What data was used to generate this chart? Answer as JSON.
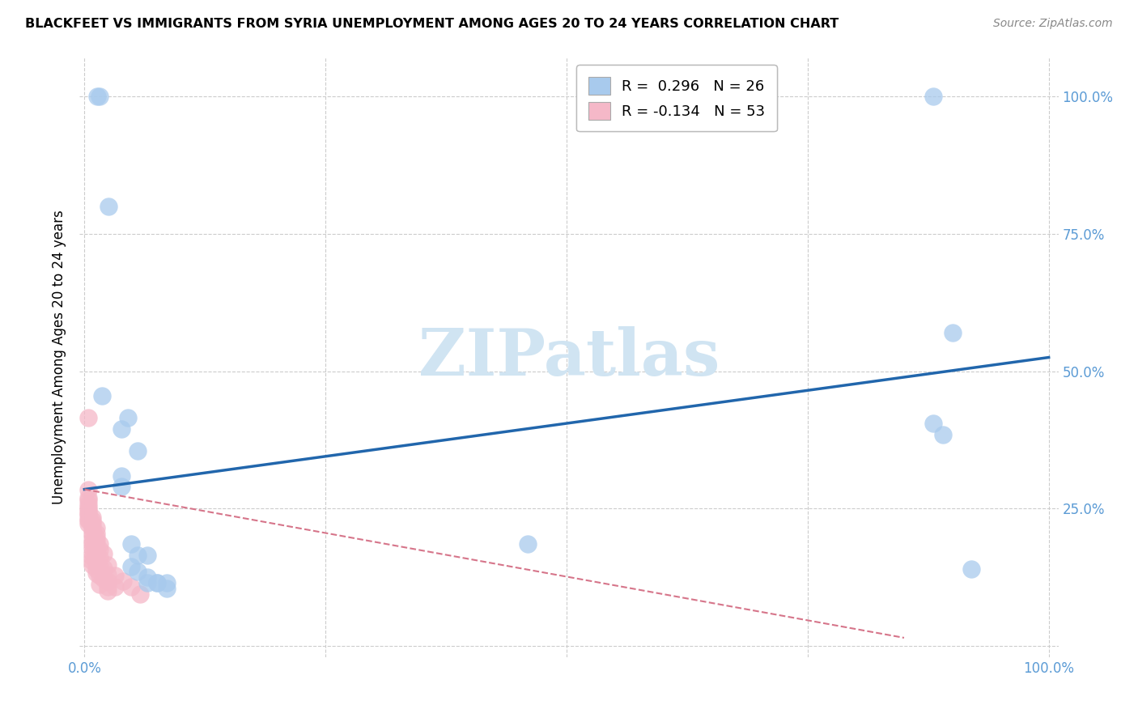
{
  "title": "BLACKFEET VS IMMIGRANTS FROM SYRIA UNEMPLOYMENT AMONG AGES 20 TO 24 YEARS CORRELATION CHART",
  "source": "Source: ZipAtlas.com",
  "ylabel": "Unemployment Among Ages 20 to 24 years",
  "legend_r_blue": "R =  0.296",
  "legend_n_blue": "N = 26",
  "legend_r_pink": "R = -0.134",
  "legend_n_pink": "N = 53",
  "blue_color": "#a8caed",
  "pink_color": "#f5b8c8",
  "blue_line_color": "#2166ac",
  "pink_line_color": "#d6758a",
  "blue_scatter": [
    [
      0.013,
      1.0
    ],
    [
      0.016,
      1.0
    ],
    [
      0.025,
      0.8
    ],
    [
      0.88,
      1.0
    ],
    [
      0.9,
      0.57
    ],
    [
      0.88,
      0.405
    ],
    [
      0.89,
      0.385
    ],
    [
      0.92,
      0.14
    ],
    [
      0.018,
      0.455
    ],
    [
      0.038,
      0.395
    ],
    [
      0.045,
      0.415
    ],
    [
      0.055,
      0.355
    ],
    [
      0.038,
      0.31
    ],
    [
      0.038,
      0.29
    ],
    [
      0.048,
      0.185
    ],
    [
      0.055,
      0.165
    ],
    [
      0.065,
      0.165
    ],
    [
      0.048,
      0.145
    ],
    [
      0.055,
      0.135
    ],
    [
      0.065,
      0.125
    ],
    [
      0.065,
      0.115
    ],
    [
      0.075,
      0.115
    ],
    [
      0.085,
      0.115
    ],
    [
      0.46,
      0.185
    ],
    [
      0.075,
      0.115
    ],
    [
      0.085,
      0.105
    ]
  ],
  "pink_scatter": [
    [
      0.004,
      0.415
    ],
    [
      0.004,
      0.285
    ],
    [
      0.004,
      0.27
    ],
    [
      0.004,
      0.265
    ],
    [
      0.004,
      0.258
    ],
    [
      0.004,
      0.252
    ],
    [
      0.004,
      0.247
    ],
    [
      0.004,
      0.242
    ],
    [
      0.004,
      0.238
    ],
    [
      0.004,
      0.232
    ],
    [
      0.004,
      0.228
    ],
    [
      0.004,
      0.222
    ],
    [
      0.008,
      0.235
    ],
    [
      0.008,
      0.228
    ],
    [
      0.008,
      0.222
    ],
    [
      0.008,
      0.215
    ],
    [
      0.008,
      0.208
    ],
    [
      0.008,
      0.2
    ],
    [
      0.008,
      0.192
    ],
    [
      0.008,
      0.185
    ],
    [
      0.008,
      0.178
    ],
    [
      0.008,
      0.17
    ],
    [
      0.008,
      0.162
    ],
    [
      0.008,
      0.155
    ],
    [
      0.008,
      0.148
    ],
    [
      0.012,
      0.215
    ],
    [
      0.012,
      0.205
    ],
    [
      0.012,
      0.198
    ],
    [
      0.012,
      0.19
    ],
    [
      0.012,
      0.182
    ],
    [
      0.012,
      0.168
    ],
    [
      0.012,
      0.15
    ],
    [
      0.012,
      0.14
    ],
    [
      0.012,
      0.132
    ],
    [
      0.016,
      0.185
    ],
    [
      0.016,
      0.175
    ],
    [
      0.016,
      0.16
    ],
    [
      0.016,
      0.145
    ],
    [
      0.016,
      0.128
    ],
    [
      0.016,
      0.112
    ],
    [
      0.02,
      0.168
    ],
    [
      0.02,
      0.142
    ],
    [
      0.02,
      0.122
    ],
    [
      0.024,
      0.148
    ],
    [
      0.024,
      0.13
    ],
    [
      0.024,
      0.118
    ],
    [
      0.024,
      0.108
    ],
    [
      0.024,
      0.1
    ],
    [
      0.032,
      0.128
    ],
    [
      0.032,
      0.108
    ],
    [
      0.04,
      0.118
    ],
    [
      0.048,
      0.108
    ],
    [
      0.058,
      0.095
    ]
  ],
  "blue_trendline_x": [
    0.0,
    1.0
  ],
  "blue_trendline_y": [
    0.285,
    0.525
  ],
  "pink_trendline_x": [
    0.0,
    0.85
  ],
  "pink_trendline_y": [
    0.285,
    0.015
  ],
  "xlim": [
    -0.005,
    1.01
  ],
  "ylim": [
    -0.02,
    1.07
  ],
  "ytick_positions": [
    0.0,
    0.25,
    0.5,
    0.75,
    1.0
  ],
  "ytick_labels_right": [
    "",
    "25.0%",
    "50.0%",
    "75.0%",
    "100.0%"
  ],
  "xtick_positions": [
    0.0,
    0.25,
    0.5,
    0.75,
    1.0
  ],
  "xtick_labels": [
    "0.0%",
    "",
    "",
    "",
    "100.0%"
  ],
  "tick_color": "#5b9bd5",
  "grid_color": "#cccccc",
  "watermark_color": "#d0e4f2"
}
